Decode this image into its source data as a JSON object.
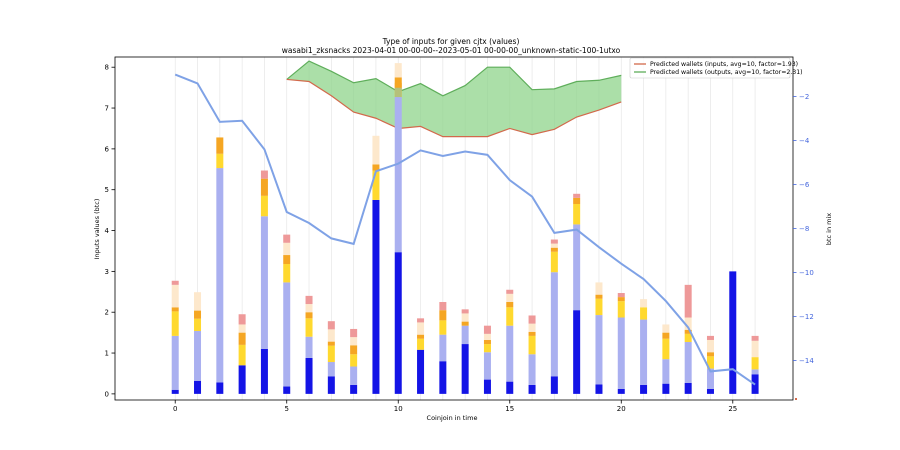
{
  "chart_data": {
    "type": "bar",
    "title": "Type of inputs for given cjtx (values)",
    "subtitle": "wasabi1_zksnacks 2023-04-01 00-00-00--2023-05-01 00-00-00_unknown-static-100-1utxo",
    "xlabel": "Coinjoin in time",
    "ylabel": "Inputs values (btc)",
    "y2label": "btc in mix",
    "xlim": [
      -2.7,
      27.7
    ],
    "ylim": [
      -0.15,
      8.25
    ],
    "y2lim": [
      -15.8,
      -0.2
    ],
    "xticks": [
      0,
      5,
      10,
      15,
      20,
      25
    ],
    "yticks": [
      0,
      1,
      2,
      3,
      4,
      5,
      6,
      7,
      8
    ],
    "y2ticks": [
      -2,
      -4,
      -6,
      -8,
      -10,
      -12,
      -14
    ],
    "grid": "x",
    "legend_position": "top-right",
    "x": [
      0,
      1,
      2,
      3,
      4,
      5,
      6,
      7,
      8,
      9,
      10,
      11,
      12,
      13,
      14,
      15,
      16,
      17,
      18,
      19,
      20,
      21,
      22,
      23,
      24,
      25,
      26
    ],
    "stack_series": [
      {
        "color": "#1414e6",
        "values": [
          0.1,
          0.32,
          0.28,
          0.7,
          1.1,
          0.18,
          0.88,
          0.43,
          0.22,
          4.75,
          3.47,
          1.08,
          0.8,
          1.22,
          0.35,
          0.3,
          0.22,
          0.43,
          2.05,
          0.23,
          0.12,
          0.22,
          0.25,
          0.27,
          0.12,
          3.0,
          0.48
        ]
      },
      {
        "color": "#aab0f0",
        "values": [
          1.32,
          1.22,
          5.25,
          0.0,
          3.25,
          2.55,
          0.52,
          0.35,
          0.45,
          0.0,
          3.8,
          0.0,
          0.65,
          0.45,
          0.67,
          1.37,
          0.75,
          2.55,
          2.1,
          1.7,
          1.75,
          1.6,
          0.6,
          1.0,
          0.5,
          0.0,
          0.12
        ]
      },
      {
        "color": "#ffd92f",
        "values": [
          0.6,
          0.3,
          0.35,
          0.5,
          0.5,
          0.45,
          0.45,
          0.4,
          0.3,
          0.72,
          0.15,
          0.27,
          0.35,
          0.0,
          0.2,
          0.45,
          0.45,
          0.5,
          0.5,
          0.4,
          0.4,
          0.3,
          0.5,
          0.2,
          0.3,
          0.0,
          0.3
        ]
      },
      {
        "color": "#f5a623",
        "values": [
          0.1,
          0.2,
          0.4,
          0.3,
          0.42,
          0.22,
          0.15,
          0.1,
          0.22,
          0.15,
          0.2,
          0.1,
          0.25,
          0.1,
          0.1,
          0.13,
          0.1,
          0.1,
          0.15,
          0.1,
          0.1,
          0.0,
          0.15,
          0.1,
          0.1,
          0.0,
          0.0
        ]
      },
      {
        "color": "#fde8cc",
        "values": [
          0.55,
          0.45,
          0.0,
          0.2,
          0.0,
          0.3,
          0.2,
          0.3,
          0.2,
          0.7,
          0.3,
          0.3,
          0.0,
          0.2,
          0.15,
          0.2,
          0.2,
          0.1,
          0.0,
          0.3,
          0.0,
          0.2,
          0.2,
          0.3,
          0.3,
          0.0,
          0.4
        ]
      },
      {
        "color": "#ee9999",
        "values": [
          0.1,
          0.0,
          0.0,
          0.25,
          0.2,
          0.2,
          0.2,
          0.2,
          0.2,
          0.0,
          0.0,
          0.1,
          0.2,
          0.1,
          0.2,
          0.1,
          0.2,
          0.1,
          0.1,
          0.0,
          0.1,
          0.0,
          0.0,
          0.8,
          0.1,
          0.0,
          0.12
        ]
      }
    ],
    "extra_segments": [
      {
        "x": 10,
        "color": "#b5c07a",
        "from": 7.27,
        "to": 7.5
      },
      {
        "x": 10,
        "color": "#f5a623",
        "from": 7.5,
        "to": 7.75
      },
      {
        "x": 10,
        "color": "#fde8cc",
        "from": 7.75,
        "to": 8.1
      }
    ],
    "line_series": [
      {
        "name": "btc in mix",
        "color": "#7fa2e6",
        "axis": "right",
        "x": [
          0,
          1,
          2,
          3,
          4,
          5,
          6,
          7,
          8,
          9,
          10,
          11,
          12,
          13,
          14,
          15,
          16,
          17,
          18,
          19,
          20,
          21,
          22,
          23,
          24,
          25,
          26
        ],
        "values": [
          -1.0,
          -1.4,
          -3.15,
          -3.1,
          -4.4,
          -7.25,
          -7.75,
          -8.45,
          -8.7,
          -5.4,
          -5.05,
          -4.45,
          -4.7,
          -4.5,
          -4.65,
          -5.8,
          -6.55,
          -8.2,
          -8.05,
          -8.85,
          -9.6,
          -10.3,
          -11.3,
          -12.5,
          -14.5,
          -14.4,
          -15.1
        ]
      }
    ],
    "band": {
      "color": "#8fd48b",
      "x": [
        5,
        6,
        7,
        8,
        9,
        10,
        11,
        12,
        13,
        14,
        15,
        16,
        17,
        18,
        19,
        20
      ],
      "upper": [
        7.7,
        8.15,
        7.9,
        7.62,
        7.72,
        7.4,
        7.6,
        7.3,
        7.55,
        8.0,
        8.0,
        7.45,
        7.47,
        7.65,
        7.68,
        7.8
      ],
      "lower": [
        7.7,
        7.65,
        7.3,
        6.9,
        6.75,
        6.5,
        6.55,
        6.3,
        6.3,
        6.3,
        6.5,
        6.35,
        6.48,
        6.78,
        6.95,
        7.15
      ]
    },
    "legend": [
      {
        "label": "Predicted wallets (inputs, avg=10, factor=1.93)",
        "color": "#d2694b"
      },
      {
        "label": "Predicted wallets (outputs, avg=10, factor=2.31)",
        "color": "#5fae5b"
      }
    ]
  }
}
